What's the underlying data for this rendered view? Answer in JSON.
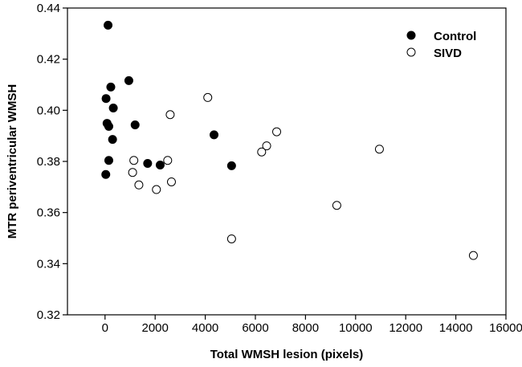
{
  "chart_data": {
    "type": "scatter",
    "xlabel": "Total WMSH lesion  (pixels)",
    "ylabel": "MTR periventricular WMSH",
    "xlim": [
      -1500,
      16000
    ],
    "ylim": [
      0.32,
      0.44
    ],
    "xticks": [
      0,
      2000,
      4000,
      6000,
      8000,
      10000,
      12000,
      14000,
      16000
    ],
    "yticks": [
      0.32,
      0.34,
      0.36,
      0.38,
      0.4,
      0.42,
      0.44
    ],
    "xtick_labels": [
      "0",
      "2000",
      "4000",
      "6000",
      "8000",
      "10000",
      "12000",
      "14000",
      "16000"
    ],
    "ytick_labels": [
      "0.32",
      "0.34",
      "0.36",
      "0.38",
      "0.40",
      "0.42",
      "0.44"
    ],
    "grid": false,
    "legend_position": "top-right",
    "series": [
      {
        "name": "Control",
        "marker": "filled-circle",
        "color": "#000000",
        "points": [
          {
            "x": 120,
            "y": 0.4333
          },
          {
            "x": 950,
            "y": 0.4116
          },
          {
            "x": 230,
            "y": 0.4091
          },
          {
            "x": 40,
            "y": 0.4046
          },
          {
            "x": 330,
            "y": 0.4009
          },
          {
            "x": 80,
            "y": 0.3949
          },
          {
            "x": 150,
            "y": 0.3937
          },
          {
            "x": 1200,
            "y": 0.3943
          },
          {
            "x": 300,
            "y": 0.3886
          },
          {
            "x": 4350,
            "y": 0.3904
          },
          {
            "x": 150,
            "y": 0.3804
          },
          {
            "x": 1700,
            "y": 0.3792
          },
          {
            "x": 2200,
            "y": 0.3786
          },
          {
            "x": 5050,
            "y": 0.3783
          },
          {
            "x": 30,
            "y": 0.3749
          }
        ]
      },
      {
        "name": "SIVD",
        "marker": "open-circle",
        "color": "#000000",
        "points": [
          {
            "x": 4100,
            "y": 0.405
          },
          {
            "x": 2600,
            "y": 0.3983
          },
          {
            "x": 6850,
            "y": 0.3916
          },
          {
            "x": 6450,
            "y": 0.3861
          },
          {
            "x": 6250,
            "y": 0.3837
          },
          {
            "x": 10950,
            "y": 0.3848
          },
          {
            "x": 1150,
            "y": 0.3804
          },
          {
            "x": 2500,
            "y": 0.3804
          },
          {
            "x": 1100,
            "y": 0.3757
          },
          {
            "x": 2650,
            "y": 0.372
          },
          {
            "x": 1350,
            "y": 0.3708
          },
          {
            "x": 2050,
            "y": 0.369
          },
          {
            "x": 9250,
            "y": 0.3628
          },
          {
            "x": 5050,
            "y": 0.3497
          },
          {
            "x": 14700,
            "y": 0.3432
          }
        ]
      }
    ]
  }
}
